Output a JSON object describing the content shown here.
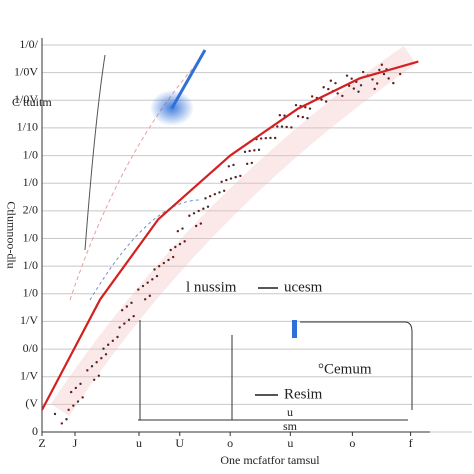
{
  "chart_data": {
    "type": "line",
    "top_label": "C ttuitm",
    "y_label": "Ctlumnoo-dlu",
    "x_label": "One mcfatfor tamsul",
    "annotations": [
      "l nussim",
      "ucesm",
      "°Cemum",
      "Resim",
      "u",
      "sm"
    ],
    "x": [
      0,
      1.5,
      3,
      4.85,
      6.6,
      8.2,
      9.7
    ],
    "series": [
      {
        "color": "#d42020",
        "values": [
          0.8,
          4.8,
          7.7,
          10,
          11.7,
          12.8,
          13.4
        ]
      }
    ],
    "xlim": [
      0,
      10
    ],
    "xticks": [
      {
        "value": 0,
        "label": "Z"
      },
      {
        "value": 0.85,
        "label": "J"
      },
      {
        "value": 2.5,
        "label": "u"
      },
      {
        "value": 3.55,
        "label": "U"
      },
      {
        "value": 4.85,
        "label": "o"
      },
      {
        "value": 6.4,
        "label": "u"
      },
      {
        "value": 8,
        "label": "o"
      },
      {
        "value": 9.5,
        "label": "f"
      }
    ],
    "ylim": [
      0,
      14
    ],
    "yticks": [
      {
        "value": 0,
        "label": "0"
      },
      {
        "value": 1,
        "label": "(V"
      },
      {
        "value": 2,
        "label": "1/V"
      },
      {
        "value": 3,
        "label": "0/0"
      },
      {
        "value": 4,
        "label": "1/V"
      },
      {
        "value": 5,
        "label": "1/0"
      },
      {
        "value": 6,
        "label": "1/0"
      },
      {
        "value": 7,
        "label": "1/0"
      },
      {
        "value": 8,
        "label": "2/0"
      },
      {
        "value": 9,
        "label": "1/0"
      },
      {
        "value": 10,
        "label": "1/0"
      },
      {
        "value": 11,
        "label": "1/10"
      },
      {
        "value": 12,
        "label": "1/0V"
      },
      {
        "value": 13,
        "label": "1/0V"
      },
      {
        "value": 14,
        "label": "1/0/"
      }
    ],
    "grid": true
  }
}
